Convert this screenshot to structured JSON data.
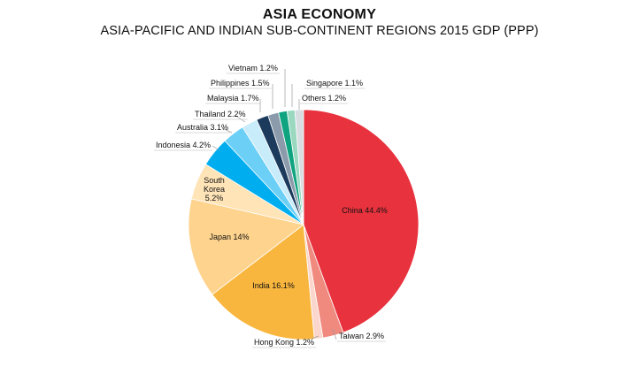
{
  "chart_data": {
    "type": "pie",
    "title": "ASIA ECONOMY",
    "subtitle": "ASIA-PACIFIC AND INDIAN SUB-CONTINENT REGIONS 2015 GDP (PPP)",
    "unit": "%",
    "slices": [
      {
        "label": "China",
        "display": "China 44.4%",
        "value": 44.4,
        "color": "#E8323E"
      },
      {
        "label": "Taiwan",
        "display": "Taiwan 2.9%",
        "value": 2.9,
        "color": "#F08A7E"
      },
      {
        "label": "Hong Kong",
        "display": "Hong Kong 1.2%",
        "value": 1.2,
        "color": "#FBD6CC"
      },
      {
        "label": "India",
        "display": "India 16.1%",
        "value": 16.1,
        "color": "#F9B63E"
      },
      {
        "label": "Japan",
        "display": "Japan 14%",
        "value": 14,
        "color": "#FED38E"
      },
      {
        "label": "South Korea",
        "display": "South Korea 5.2%",
        "display_lines": [
          "South",
          "Korea",
          "5.2%"
        ],
        "value": 5.2,
        "color": "#FFE4B8"
      },
      {
        "label": "Indonesia",
        "display": "Indonesia 4.2%",
        "value": 4.2,
        "color": "#00AEEF"
      },
      {
        "label": "Australia",
        "display": "Australia 3.1%",
        "value": 3.1,
        "color": "#6CCFF6"
      },
      {
        "label": "Thailand",
        "display": "Thailand 2.2%",
        "value": 2.2,
        "color": "#C8ECFA"
      },
      {
        "label": "Malaysia",
        "display": "Malaysia 1.7%",
        "value": 1.7,
        "color": "#1B3A5C"
      },
      {
        "label": "Philippines",
        "display": "Philippines 1.5%",
        "value": 1.5,
        "color": "#8C9BAB"
      },
      {
        "label": "Vietnam",
        "display": "Vietnam 1.2%",
        "value": 1.2,
        "color": "#0FA37F"
      },
      {
        "label": "Singapore",
        "display": "Singapore 1.1%",
        "value": 1.1,
        "color": "#9AD9C0"
      },
      {
        "label": "Others",
        "display": "Others 1.2%",
        "value": 1.2,
        "color": "#D8DDE2"
      }
    ]
  }
}
